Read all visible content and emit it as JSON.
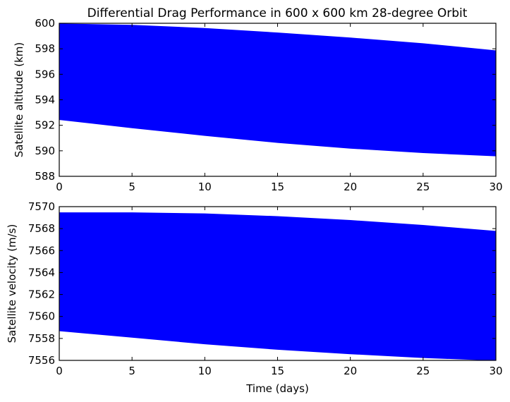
{
  "chart_data": [
    {
      "type": "area",
      "title": "Differential Drag Performance in 600 x 600 km 28-degree Orbit",
      "xlabel": "",
      "ylabel": "Satellite altitude (km)",
      "xlim": [
        0,
        30
      ],
      "ylim": [
        588,
        600
      ],
      "xticks": [
        "0",
        "5",
        "10",
        "15",
        "20",
        "25",
        "30"
      ],
      "yticks": [
        "588",
        "590",
        "592",
        "594",
        "596",
        "598",
        "600"
      ],
      "grid": false,
      "color": "#0000ff",
      "series": [
        {
          "x": [
            0,
            5,
            10,
            15,
            20,
            25,
            30
          ],
          "upper": [
            599.95,
            599.85,
            599.6,
            599.25,
            598.85,
            598.4,
            597.85
          ],
          "lower": [
            592.45,
            591.8,
            591.2,
            590.65,
            590.2,
            589.85,
            589.6
          ]
        }
      ]
    },
    {
      "type": "area",
      "title": "",
      "xlabel": "Time (days)",
      "ylabel": "Satellite velocity (m/s)",
      "xlim": [
        0,
        30
      ],
      "ylim": [
        7556,
        7570
      ],
      "xticks": [
        "0",
        "5",
        "10",
        "15",
        "20",
        "25",
        "30"
      ],
      "yticks": [
        "7556",
        "7558",
        "7560",
        "7562",
        "7564",
        "7566",
        "7568",
        "7570"
      ],
      "grid": false,
      "color": "#0000ff",
      "series": [
        {
          "x": [
            0,
            5,
            10,
            15,
            20,
            25,
            30
          ],
          "upper": [
            7569.45,
            7569.45,
            7569.35,
            7569.1,
            7568.75,
            7568.3,
            7567.75
          ],
          "lower": [
            7558.7,
            7558.1,
            7557.5,
            7557.0,
            7556.6,
            7556.25,
            7556.0
          ]
        }
      ]
    }
  ]
}
